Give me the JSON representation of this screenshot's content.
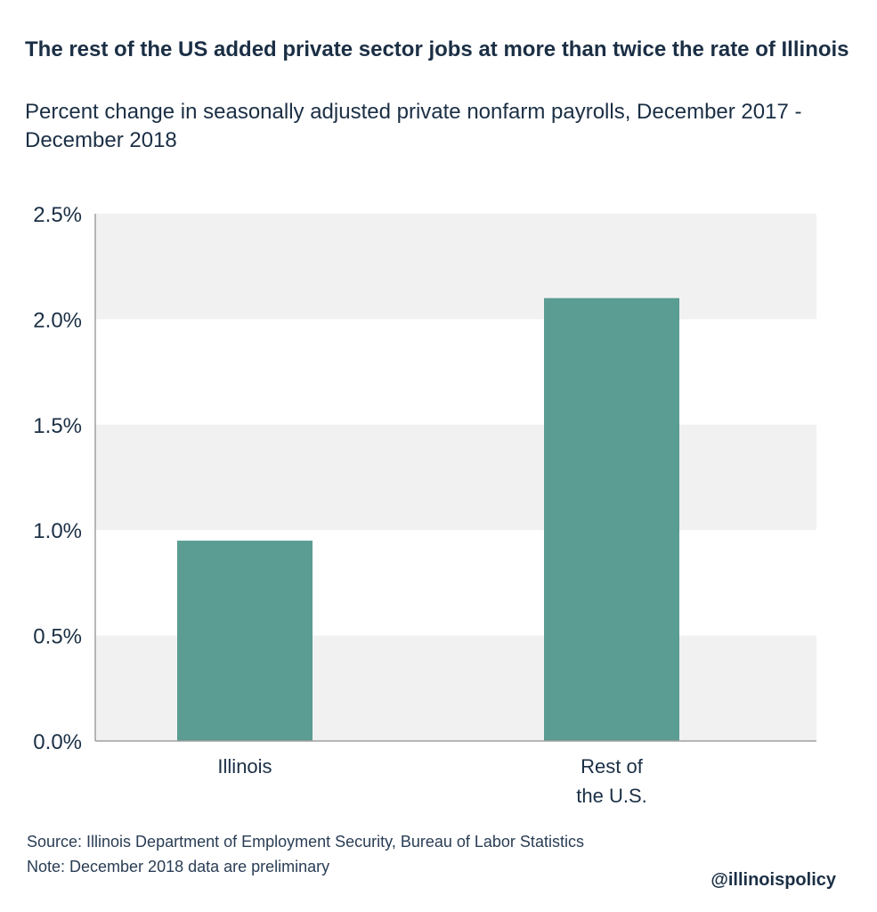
{
  "title": "The rest of the US added private sector jobs at more than twice the rate of Illinois",
  "subtitle": "Percent change in seasonally adjusted private nonfarm payrolls, December 2017 - December 2018",
  "source": "Source:  Illinois Department of Employment Security, Bureau of Labor Statistics",
  "note": "Note: December 2018 data are preliminary",
  "handle": "@illinoispolicy",
  "colors": {
    "bar": "#5b9c93",
    "band": "#f1f1f1",
    "text": "#1b2f45"
  },
  "chart_data": {
    "type": "bar",
    "title": "The rest of the US added private sector jobs at more than twice the rate of Illinois",
    "categories": [
      "Illinois",
      "Rest of the U.S."
    ],
    "category_lines": [
      [
        "Illinois"
      ],
      [
        "Rest of",
        "the U.S."
      ]
    ],
    "values": [
      0.95,
      2.1
    ],
    "ylim": [
      0,
      2.5
    ],
    "yticks": [
      0,
      0.5,
      1.0,
      1.5,
      2.0,
      2.5
    ],
    "ytick_labels": [
      "0.0%",
      "0.5%",
      "1.0%",
      "1.5%",
      "2.0%",
      "2.5%"
    ],
    "xlabel": "",
    "ylabel": "",
    "grid": "alternating bands",
    "legend": "none"
  }
}
